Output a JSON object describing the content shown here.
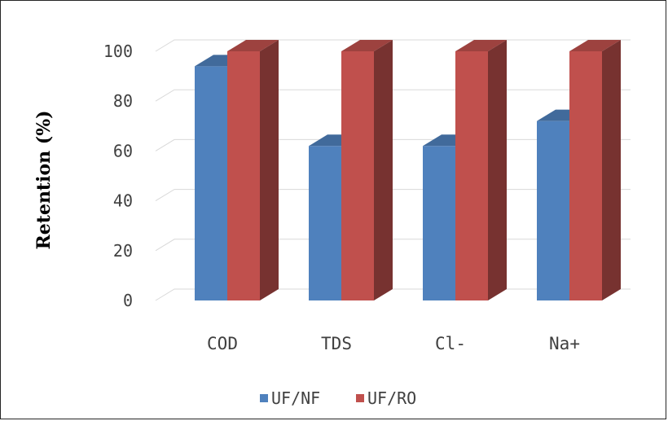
{
  "chart_data": {
    "type": "bar",
    "categories": [
      "COD",
      "TDS",
      "Cl-",
      "Na+"
    ],
    "series": [
      {
        "name": "UF/NF",
        "values": [
          94,
          62,
          62,
          72
        ],
        "color": "#4F81BD"
      },
      {
        "name": "UF/RO",
        "values": [
          100,
          100,
          100,
          100
        ],
        "color": "#C0504D"
      }
    ],
    "ylabel": "Retention (%)",
    "xlabel": "",
    "ylim": [
      0,
      100
    ],
    "yticks": [
      0,
      20,
      40,
      60,
      80,
      100
    ],
    "grid": true,
    "legend_position": "bottom"
  }
}
